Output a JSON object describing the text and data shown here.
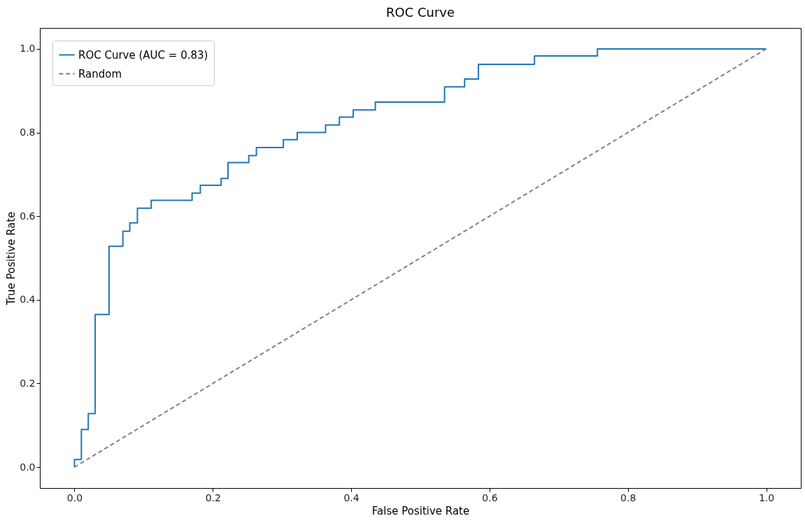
{
  "chart_data": {
    "type": "step",
    "title": "ROC Curve",
    "xlabel": "False Positive Rate",
    "ylabel": "True Positive Rate",
    "xlim": [
      -0.05,
      1.05
    ],
    "xticks": [
      {
        "value": 0,
        "label": "0.0"
      },
      0.2,
      0.4,
      0.6,
      0.8,
      {
        "value": 1,
        "label": "1.0"
      }
    ],
    "ylim": [
      -0.05,
      1.05
    ],
    "yticks": [
      {
        "value": 0,
        "label": "0.0"
      },
      0.2,
      0.4,
      0.6,
      0.8,
      {
        "value": 1,
        "label": "1.0"
      }
    ],
    "grid": false,
    "legend": "top left",
    "series": [
      {
        "name": "ROC Curve (AUC = 0.83)",
        "type": "step",
        "color": "#1f77b4",
        "line_style": "solid",
        "x": [
          0,
          0,
          0.01,
          0.02,
          0.03,
          0.05,
          0.07,
          0.08,
          0.091,
          0.111,
          0.17,
          0.182,
          0.212,
          0.222,
          0.252,
          0.263,
          0.302,
          0.322,
          0.363,
          0.383,
          0.403,
          0.435,
          0.535,
          0.564,
          0.584,
          0.665,
          0.756,
          1.0
        ],
        "values": [
          0,
          0.018,
          0.09,
          0.128,
          0.365,
          0.528,
          0.564,
          0.584,
          0.619,
          0.638,
          0.655,
          0.674,
          0.69,
          0.728,
          0.745,
          0.764,
          0.783,
          0.8,
          0.818,
          0.837,
          0.854,
          0.873,
          0.909,
          0.928,
          0.963,
          0.983,
          1.0,
          1.0
        ]
      },
      {
        "name": "Random",
        "type": "line",
        "color": "#808080",
        "line_style": "dashed",
        "x": [
          0,
          1
        ],
        "values": [
          0,
          1
        ]
      }
    ]
  }
}
